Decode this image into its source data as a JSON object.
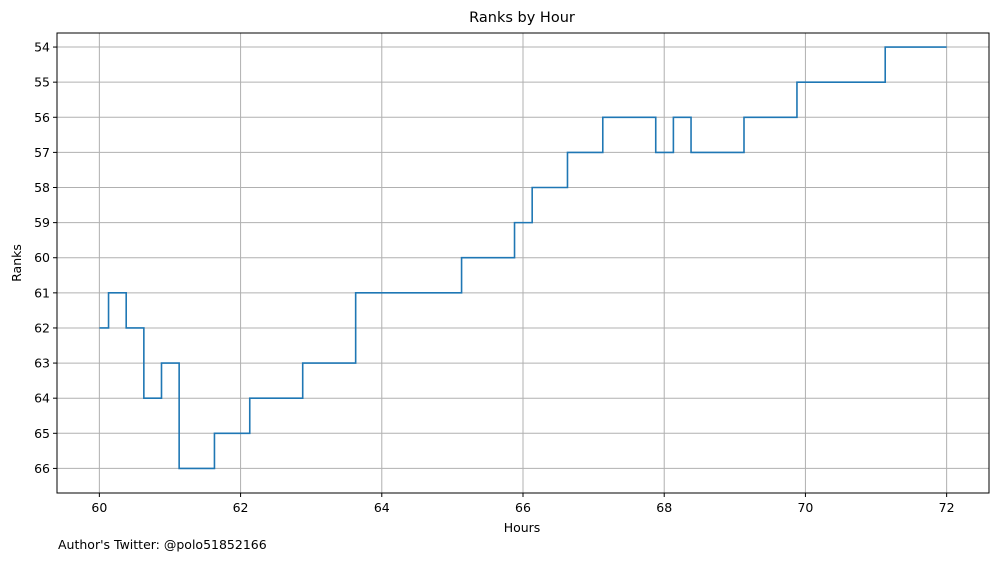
{
  "chart_data": {
    "type": "line",
    "drawstyle": "steps-post",
    "title": "Ranks by Hour",
    "xlabel": "Hours",
    "ylabel": "Ranks",
    "xlim": [
      59.4,
      72.6
    ],
    "ylim": [
      66.7,
      53.6
    ],
    "y_inverted": true,
    "grid": true,
    "xticks": [
      60,
      62,
      64,
      66,
      68,
      70,
      72
    ],
    "yticks": [
      54,
      55,
      56,
      57,
      58,
      59,
      60,
      61,
      62,
      63,
      64,
      65,
      66
    ],
    "series": [
      {
        "color": "#1f77b4",
        "x": [
          60.0,
          60.13,
          60.38,
          60.63,
          60.88,
          61.13,
          61.63,
          62.13,
          62.88,
          63.63,
          65.13,
          65.88,
          66.13,
          66.63,
          67.13,
          67.88,
          68.13,
          68.38,
          69.13,
          69.88,
          71.13,
          72.0
        ],
        "y": [
          62,
          61,
          62,
          64,
          63,
          66,
          65,
          64,
          63,
          61,
          60,
          59,
          58,
          57,
          56,
          57,
          56,
          57,
          56,
          55,
          54,
          54
        ]
      }
    ]
  },
  "footer_text": "Author's Twitter: @polo51852166"
}
